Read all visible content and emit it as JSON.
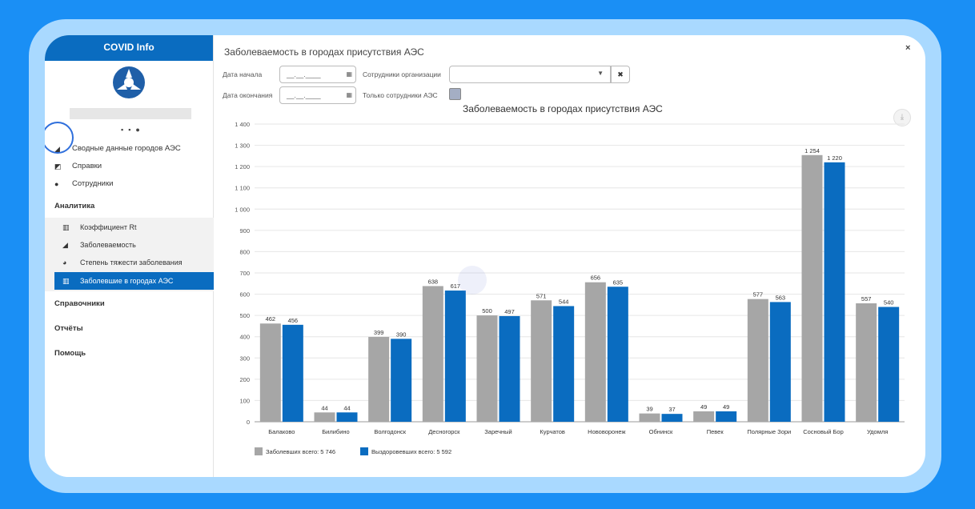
{
  "app": {
    "title": "COVID Info"
  },
  "sidebar": {
    "top_items": [
      {
        "label": "Сводные данные городов АЭС",
        "icon": "area-chart-icon"
      },
      {
        "label": "Справки",
        "icon": "edit-icon"
      },
      {
        "label": "Сотрудники",
        "icon": "user-icon"
      }
    ],
    "section_analytics": "Аналитика",
    "analytics_items": [
      {
        "label": "Коэффициент Rt",
        "icon": "bar-chart-icon"
      },
      {
        "label": "Заболеваемость",
        "icon": "area-chart-icon"
      },
      {
        "label": "Степень тяжести заболевания",
        "icon": "pie-chart-icon"
      },
      {
        "label": "Заболевшие в городах АЭС",
        "icon": "bar-chart-icon"
      }
    ],
    "section_references": "Справочники",
    "section_reports": "Отчёты",
    "section_help": "Помощь"
  },
  "page": {
    "title": "Заболеваемость в городах присутствия АЭС",
    "close": "×"
  },
  "filters": {
    "start_label": "Дата начала",
    "start_value": "__.__.____",
    "end_label": "Дата окончания",
    "end_value": "__.__.____",
    "org_label": "Сотрудники организации",
    "org_value": "",
    "only_label": "Только сотрудники АЭС"
  },
  "colors": {
    "sick": "#a6a6a6",
    "recovered": "#0a6cc0",
    "accent": "#0a6cc0"
  },
  "chart_data": {
    "type": "bar",
    "title": "Заболеваемость в городах присутствия АЭС",
    "categories": [
      "Балаково",
      "Билибино",
      "Волгодонск",
      "Десногорск",
      "Заречный",
      "Курчатов",
      "Нововоронеж",
      "Обнинск",
      "Певек",
      "Полярные Зори",
      "Сосновый Бор",
      "Удомля"
    ],
    "series": [
      {
        "name": "Заболевших всего: 5 746",
        "values": [
          462,
          44,
          399,
          638,
          500,
          571,
          656,
          39,
          49,
          577,
          1254,
          557
        ]
      },
      {
        "name": "Выздоровевших всего: 5 592",
        "values": [
          456,
          44,
          390,
          617,
          497,
          544,
          635,
          37,
          49,
          563,
          1220,
          540
        ]
      }
    ],
    "value_labels": [
      [
        "462",
        "44",
        "399",
        "638",
        "500",
        "571",
        "656",
        "39",
        "49",
        "577",
        "1 254",
        "557"
      ],
      [
        "456",
        "44",
        "390",
        "617",
        "497",
        "544",
        "635",
        "37",
        "49",
        "563",
        "1 220",
        "540"
      ]
    ],
    "y_ticks": [
      "0",
      "100",
      "200",
      "300",
      "400",
      "500",
      "600",
      "700",
      "800",
      "900",
      "1 000",
      "1 100",
      "1 200",
      "1 300",
      "1 400"
    ],
    "ylim": [
      0,
      1400
    ],
    "grid": true,
    "legend": "bottom-left"
  }
}
